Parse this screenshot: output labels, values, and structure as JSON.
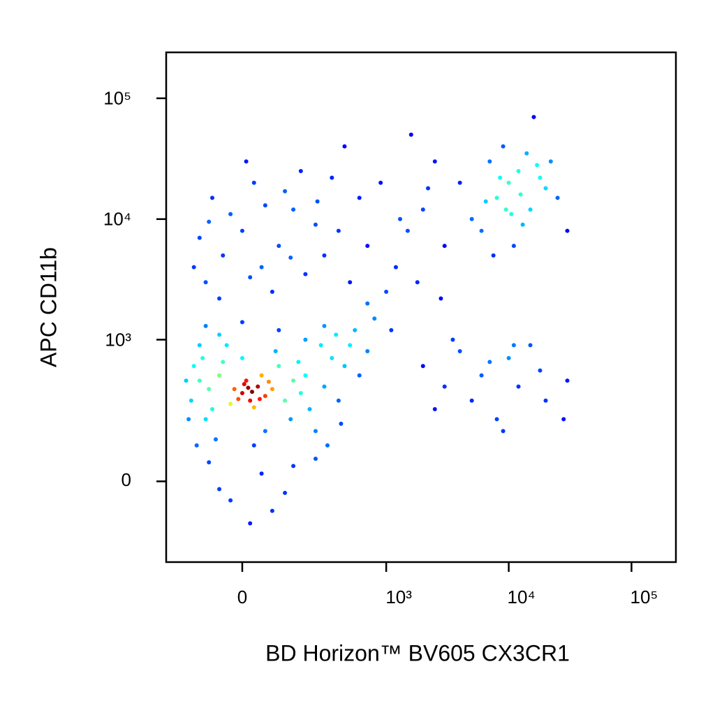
{
  "chart_data": {
    "type": "scatter",
    "x_label": "BD Horizon™ BV605 CX3CR1",
    "y_label": "APC CD11b",
    "xscale": "biexponential",
    "yscale": "biexponential",
    "xlim": [
      -265,
      230000
    ],
    "ylim": [
      -300,
      240000
    ],
    "xticks": [
      0,
      {
        "value": 1000,
        "label": "10³"
      },
      {
        "value": 10000,
        "label": "10⁴"
      },
      {
        "value": 100000,
        "label": "10⁵"
      }
    ],
    "yticks": [
      0,
      {
        "value": 1000,
        "label": "10³"
      },
      {
        "value": 10000,
        "label": "10⁴"
      },
      {
        "value": 100000,
        "label": "10⁵"
      }
    ],
    "color_map": "jet",
    "x": [
      0,
      20,
      40,
      -20,
      60,
      10,
      30,
      -10,
      50,
      80,
      5,
      -30,
      70,
      25,
      45,
      15,
      -80,
      -60,
      120,
      150,
      -90,
      100,
      -50,
      180,
      -100,
      0,
      60,
      140,
      -70,
      200,
      90,
      -40,
      220,
      -120,
      30,
      170,
      -150,
      -130,
      -110,
      250,
      300,
      350,
      280,
      -140,
      -60,
      100,
      200,
      400,
      450,
      -90,
      50,
      150,
      -30,
      80,
      250,
      -160,
      500,
      380,
      -100,
      0,
      300,
      600,
      700,
      550,
      -170,
      -120,
      120,
      20,
      -60,
      320,
      420,
      -100,
      -50,
      0,
      50,
      100,
      150,
      -80,
      30,
      200,
      250,
      -120,
      80,
      300,
      -30,
      120,
      180,
      -140,
      60,
      400,
      500,
      600,
      -60,
      350,
      10,
      450,
      700,
      20,
      -90,
      140,
      260,
      800,
      1000,
      1200,
      1500,
      2000,
      900,
      2500,
      1800,
      3000,
      1100,
      700,
      2200,
      1300,
      2800,
      1600,
      5000,
      8000,
      10000,
      12000,
      15000,
      7000,
      20000,
      6000,
      9000,
      11000,
      14000,
      18000,
      25000,
      4000,
      13000,
      16000,
      9500,
      7500,
      22000,
      30000,
      12500,
      8500,
      6500,
      17000,
      10500,
      2000,
      3000,
      4000,
      5000,
      6000,
      8000,
      10000,
      12000,
      15000,
      20000,
      2500,
      7000,
      9000,
      18000,
      30000,
      3500,
      28000,
      11000
    ],
    "values": [
      350,
      300,
      400,
      380,
      330,
      450,
      260,
      310,
      500,
      380,
      420,
      280,
      440,
      360,
      310,
      390,
      250,
      500,
      300,
      450,
      380,
      600,
      650,
      350,
      200,
      700,
      150,
      200,
      120,
      500,
      800,
      900,
      250,
      450,
      100,
      650,
      300,
      100,
      700,
      150,
      400,
      700,
      900,
      600,
      1100,
      1200,
      1000,
      300,
      600,
      50,
      20,
      40,
      -50,
      -80,
      60,
      200,
      900,
      1100,
      1300,
      1400,
      1300,
      500,
      800,
      1200,
      450,
      900,
      -30,
      -120,
      -20,
      100,
      180,
      3000,
      5000,
      8000,
      4000,
      6000,
      12000,
      15000,
      20000,
      3500,
      9000,
      7000,
      2500,
      5000,
      11000,
      17000,
      25000,
      4000,
      13000,
      8000,
      3000,
      15000,
      2200,
      22000,
      30000,
      40000,
      6000,
      3300,
      9500,
      4800,
      14000,
      1500,
      2500,
      4000,
      8000,
      12000,
      20000,
      30000,
      3000,
      6000,
      1200,
      2000,
      18000,
      10000,
      2200,
      50000,
      10000,
      15000,
      20000,
      25000,
      12000,
      30000,
      18000,
      8000,
      40000,
      6000,
      35000,
      22000,
      15000,
      20000,
      9000,
      70000,
      12000,
      5000,
      30000,
      8000,
      16000,
      22000,
      14000,
      28000,
      11000,
      600,
      400,
      800,
      300,
      500,
      200,
      700,
      400,
      900,
      300,
      250,
      650,
      150,
      550,
      450,
      1000,
      200,
      900
    ]
  }
}
